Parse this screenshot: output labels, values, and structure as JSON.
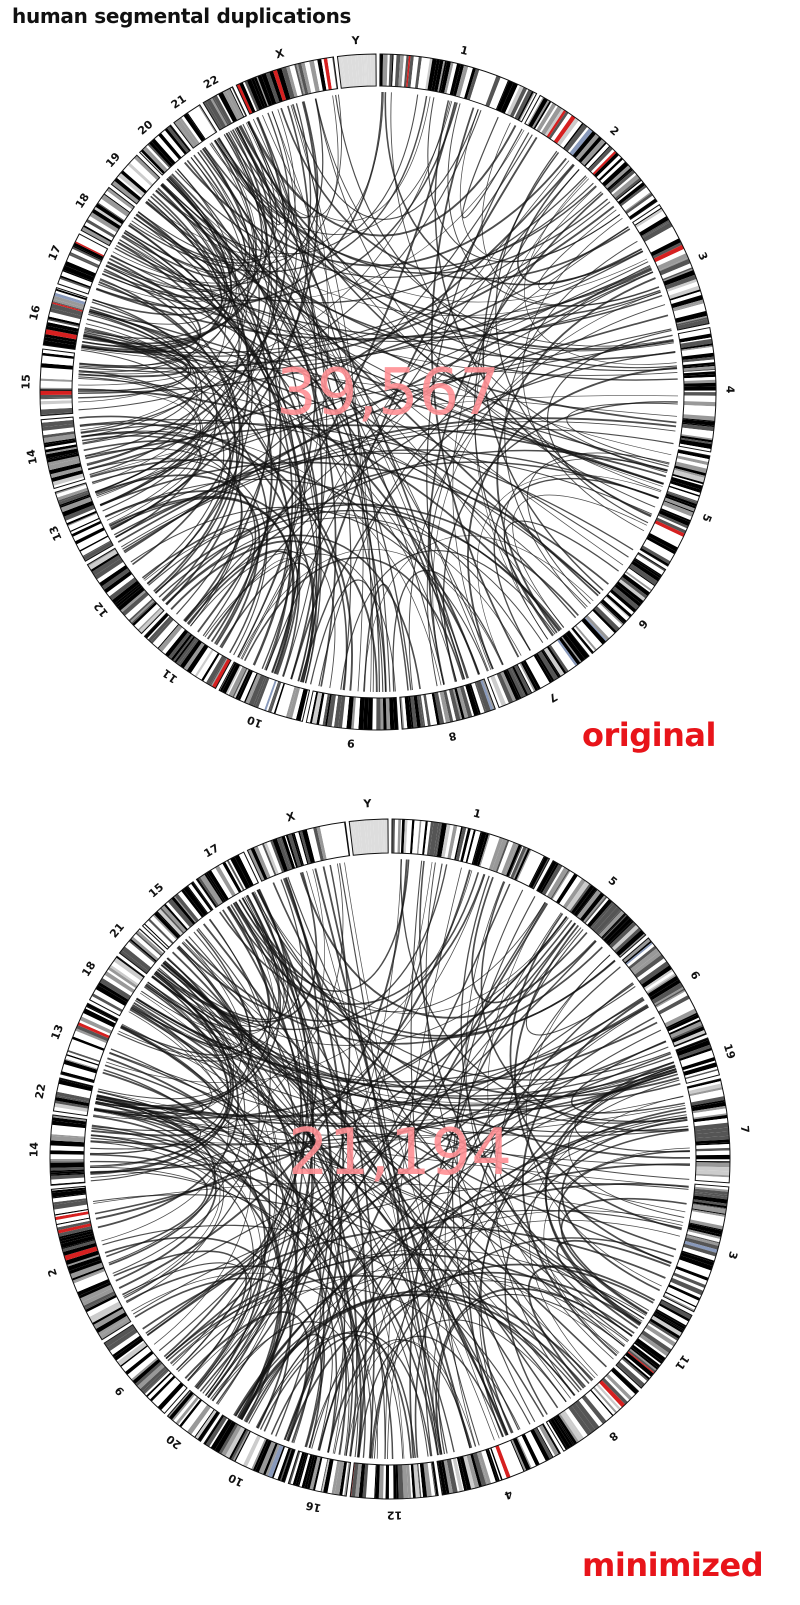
{
  "title": "human segmental duplications",
  "colors": {
    "label": "#e8141a",
    "count": "#ff8f93",
    "gap_band": "#d62020",
    "stalk_band": "#8899bb",
    "ring_stroke": "#111111",
    "link": "#111111"
  },
  "panels": [
    {
      "label": "original",
      "count": "39,567",
      "order": [
        "1",
        "2",
        "3",
        "4",
        "5",
        "6",
        "7",
        "8",
        "9",
        "10",
        "11",
        "12",
        "13",
        "14",
        "15",
        "16",
        "17",
        "18",
        "19",
        "20",
        "21",
        "22",
        "X",
        "Y"
      ]
    },
    {
      "label": "minimized",
      "count": "21,194",
      "order": [
        "1",
        "5",
        "6",
        "19",
        "7",
        "3",
        "11",
        "8",
        "4",
        "12",
        "16",
        "10",
        "20",
        "9",
        "2",
        "14",
        "22",
        "13",
        "18",
        "21",
        "15",
        "17",
        "X",
        "Y"
      ]
    }
  ]
}
